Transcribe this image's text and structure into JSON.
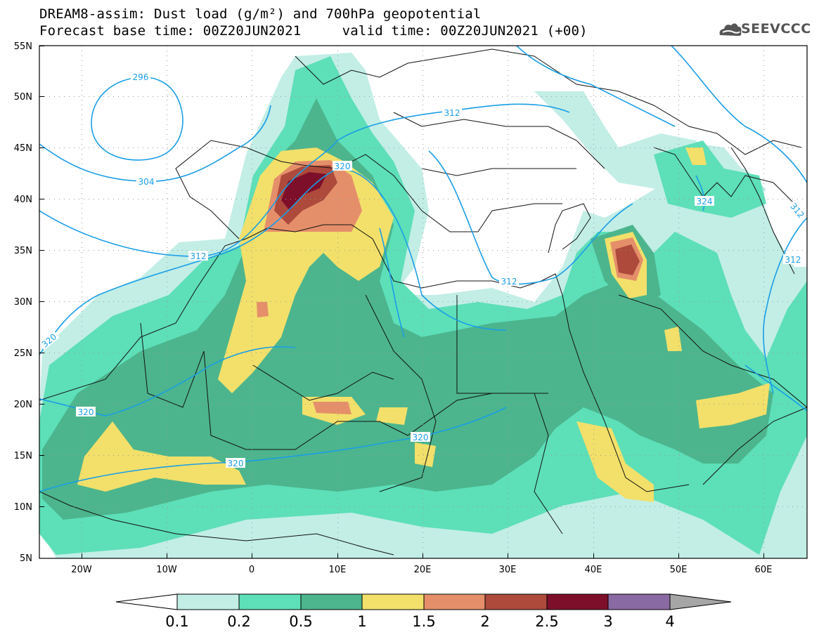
{
  "title": {
    "line1": "DREAM8-assim: Dust load (g/m²) and 700hPa geopotential",
    "line2": "Forecast base time: 00Z20JUN2021     valid time: 00Z20JUN2021 (+00)"
  },
  "logo": {
    "text": "SEEVCCC",
    "icon": "cloud-logo-icon"
  },
  "axes": {
    "lat_labels": [
      "55N",
      "50N",
      "45N",
      "40N",
      "35N",
      "30N",
      "25N",
      "20N",
      "15N",
      "10N",
      "5N"
    ],
    "lon_labels": [
      "20W",
      "10W",
      "0",
      "10E",
      "20E",
      "30E",
      "40E",
      "50E",
      "60E"
    ],
    "lat_range": [
      5,
      55
    ],
    "lon_range": [
      -25,
      65
    ]
  },
  "contour_labels": [
    "296",
    "304",
    "312",
    "312",
    "312",
    "320",
    "320",
    "320",
    "320",
    "320",
    "324",
    "312",
    "312"
  ],
  "colorbar": {
    "ticks": [
      "0.1",
      "0.2",
      "0.5",
      "1",
      "1.5",
      "2",
      "2.5",
      "3",
      "4"
    ],
    "colors": [
      "#ffffff",
      "#c2eee6",
      "#5ddfb8",
      "#4cb58d",
      "#f2e06a",
      "#e58f6a",
      "#ad4a3c",
      "#7e0f2a",
      "#8a6aa3",
      "#a6a6a6"
    ]
  },
  "colors": {
    "geopotential_contour": "#1a9ee6",
    "borders": "#111111",
    "grid": "#9a9a9a"
  }
}
